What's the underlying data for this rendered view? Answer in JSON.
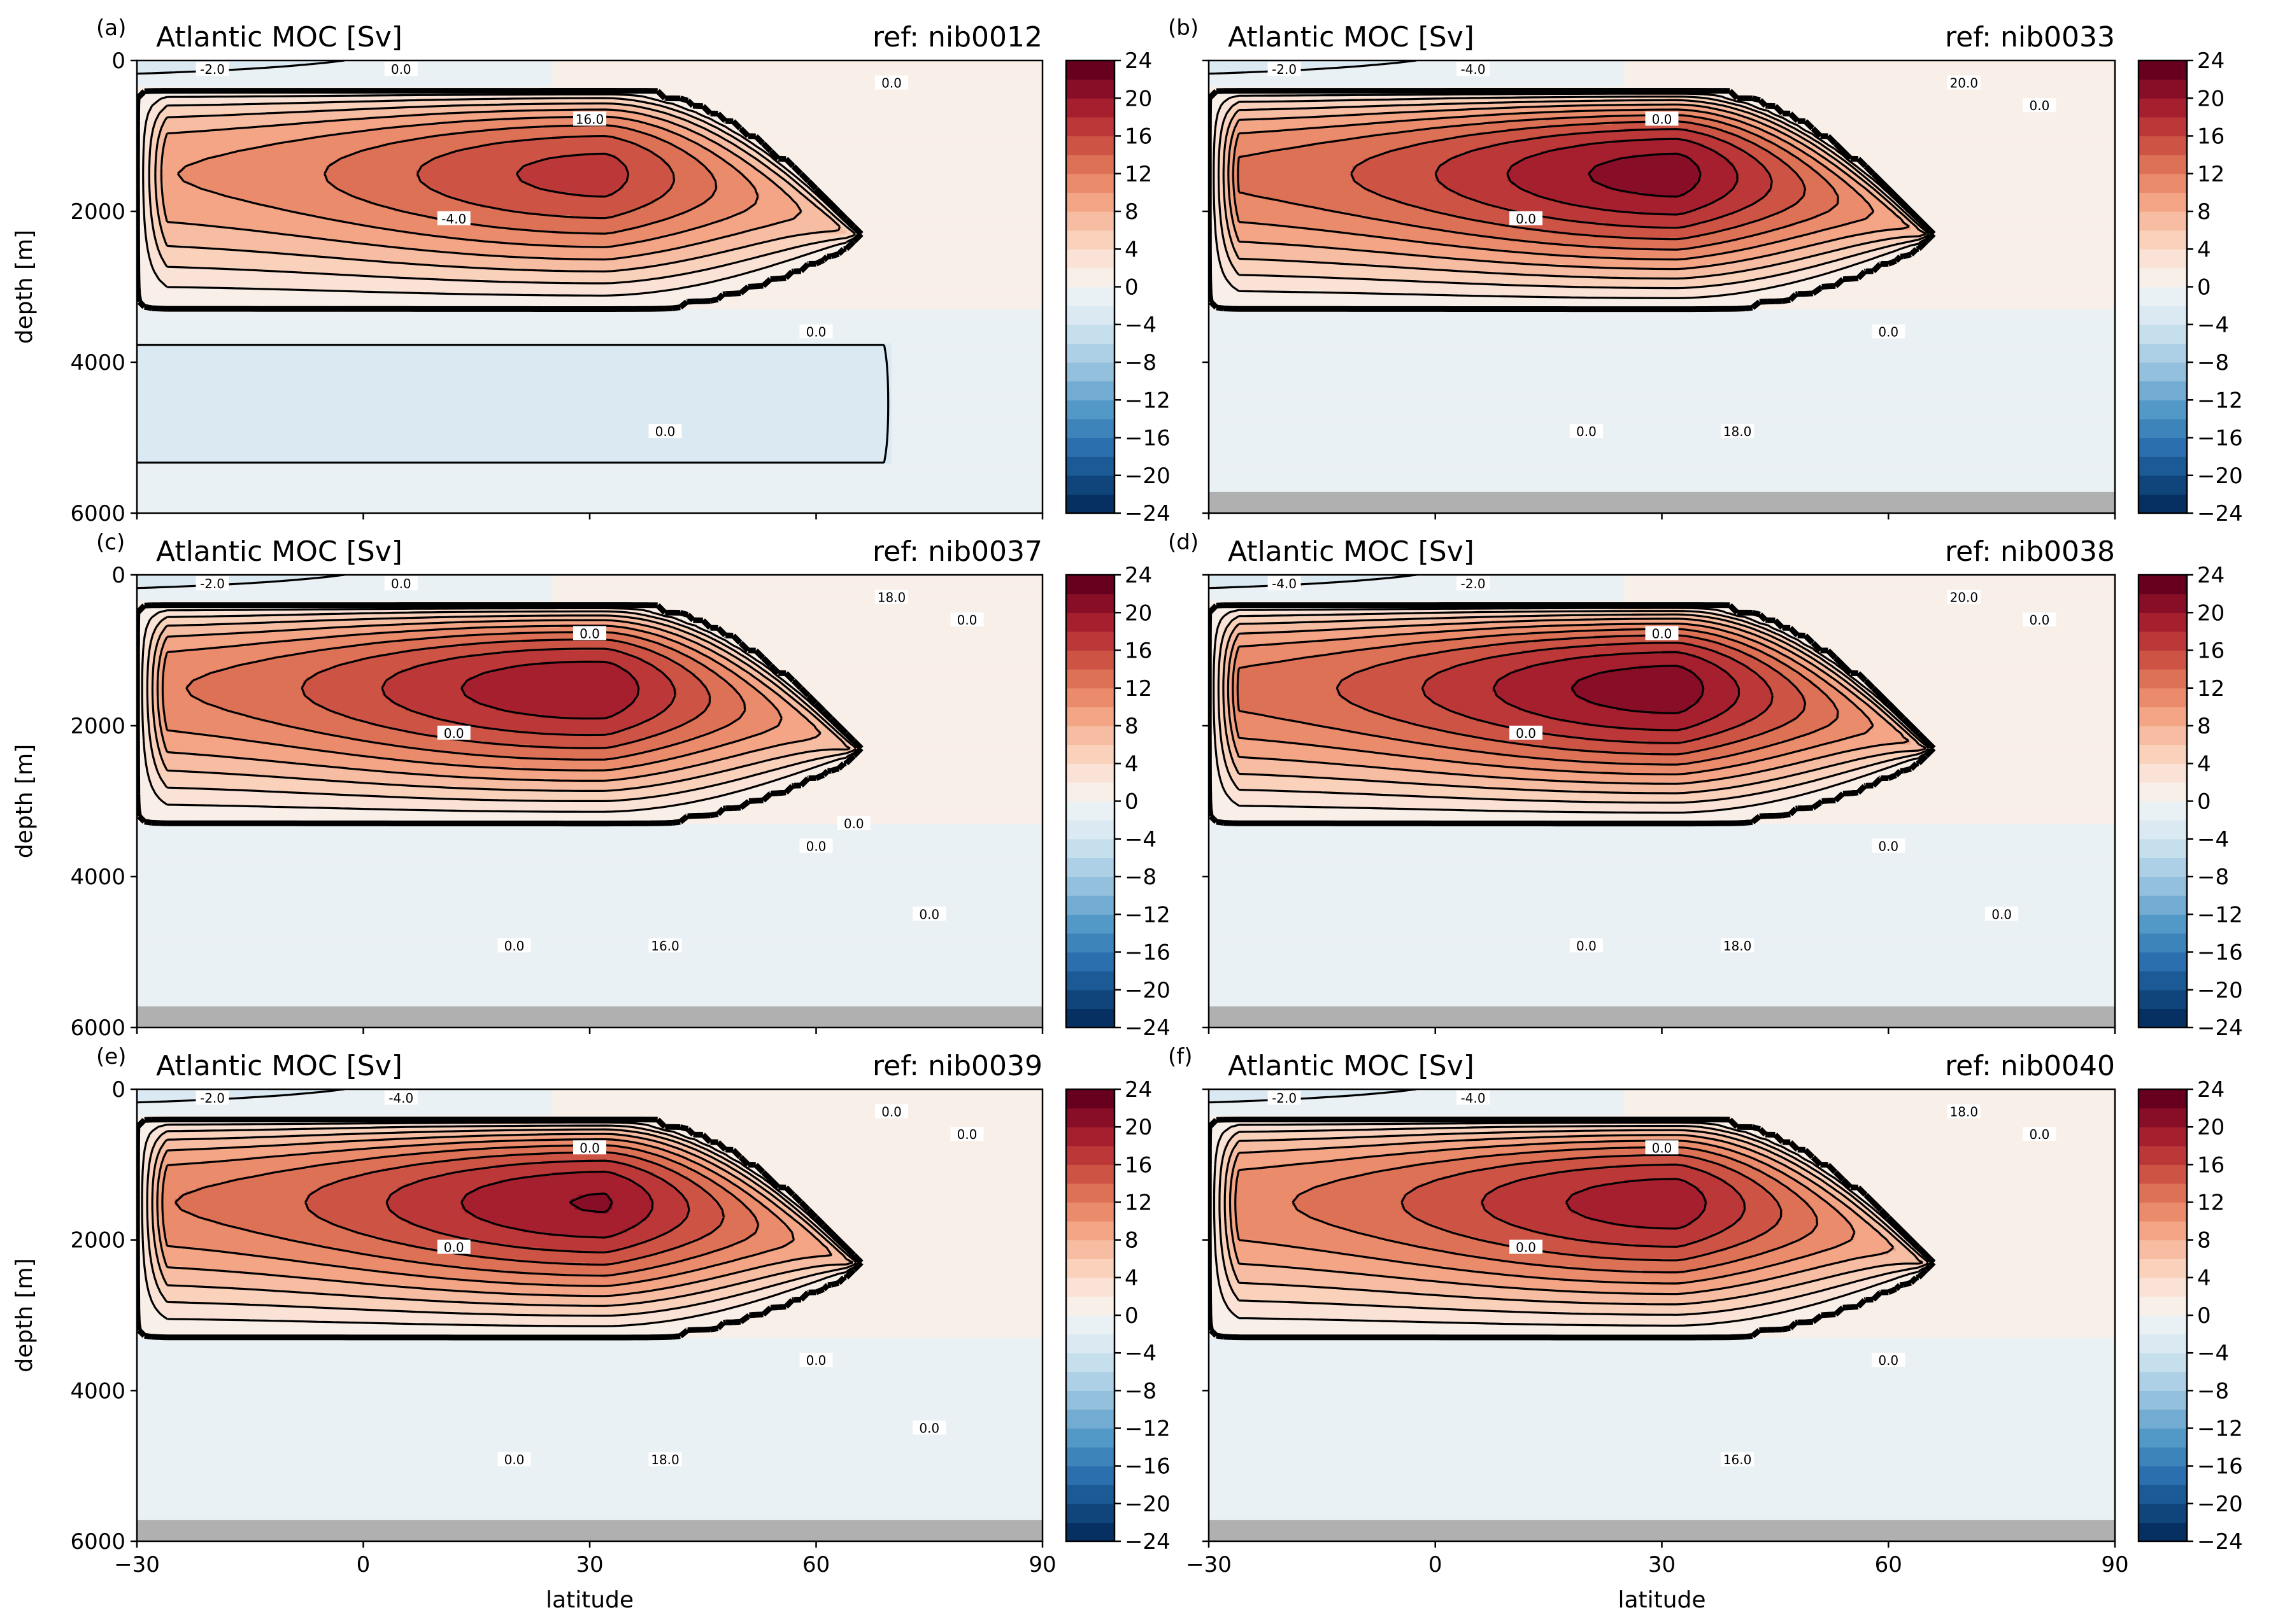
{
  "colors": {
    "levels": [
      -24,
      -22,
      -20,
      -18,
      -16,
      -14,
      -12,
      -10,
      -8,
      -6,
      -4,
      -2,
      0,
      2,
      4,
      6,
      8,
      10,
      12,
      14,
      16,
      18,
      20,
      22,
      24
    ],
    "palette": [
      "#053061",
      "#0f457b",
      "#1b5a95",
      "#2c6fae",
      "#3d84bb",
      "#5399c7",
      "#72acd2",
      "#92c0dd",
      "#aed0e6",
      "#c6dfed",
      "#dae9f2",
      "#eaf1f5",
      "#f9efe9",
      "#fbe2d6",
      "#fad2bc",
      "#f7bda2",
      "#f3a585",
      "#ea8b6c",
      "#dd7156",
      "#cd5445",
      "#bc3838",
      "#a61f2e",
      "#880d26",
      "#67001f"
    ],
    "land": "#b0b0b0"
  },
  "charts": [
    {
      "letter": "(a)",
      "title": "Atlantic MOC [Sv]",
      "ref": "ref: nib0012",
      "ylabel": "depth [m]",
      "xlabel": "",
      "max": 16.8,
      "core_lat": 33,
      "bottom_strength": -3.6,
      "land": false,
      "contour_labels": [
        "-2.0",
        "0.0",
        "16.0",
        "-4.0",
        "0.0",
        "0.0",
        "0.0"
      ]
    },
    {
      "letter": "(b)",
      "title": "Atlantic MOC [Sv]",
      "ref": "ref: nib0033",
      "ylabel": "",
      "xlabel": "",
      "max": 21.0,
      "core_lat": 33,
      "bottom_strength": -0.6,
      "land": true,
      "contour_labels": [
        "-2.0",
        "-4.0",
        "0.0",
        "0.0",
        "18.0",
        "20.0",
        "0.0",
        "0.0",
        "0.0"
      ]
    },
    {
      "letter": "(c)",
      "title": "Atlantic MOC [Sv]",
      "ref": "ref: nib0037",
      "ylabel": "depth [m]",
      "xlabel": "",
      "max": 19.6,
      "core_lat": 30,
      "bottom_strength": -0.6,
      "land": true,
      "contour_labels": [
        "-2.0",
        "0.0",
        "0.0",
        "0.0",
        "16.0",
        "18.0",
        "0.0",
        "0.0",
        "0.0",
        "0.0",
        "0.0"
      ]
    },
    {
      "letter": "(d)",
      "title": "Atlantic MOC [Sv]",
      "ref": "ref: nib0038",
      "ylabel": "",
      "xlabel": "",
      "max": 21.2,
      "core_lat": 32,
      "bottom_strength": -0.6,
      "land": true,
      "contour_labels": [
        "-4.0",
        "-2.0",
        "0.0",
        "0.0",
        "18.0",
        "20.0",
        "0.0",
        "0.0",
        "0.0",
        "0.0"
      ]
    },
    {
      "letter": "(e)",
      "title": "Atlantic MOC [Sv]",
      "ref": "ref: nib0039",
      "ylabel": "depth [m]",
      "xlabel": "latitude",
      "max": 20.2,
      "core_lat": 33,
      "bottom_strength": -0.6,
      "land": true,
      "contour_labels": [
        "-2.0",
        "-4.0",
        "0.0",
        "0.0",
        "18.0",
        "0.0",
        "0.0",
        "0.0",
        "0.0",
        "0.0"
      ]
    },
    {
      "letter": "(f)",
      "title": "Atlantic MOC [Sv]",
      "ref": "ref: nib0040",
      "ylabel": "",
      "xlabel": "latitude",
      "max": 19.2,
      "core_lat": 32,
      "bottom_strength": -0.6,
      "land": true,
      "contour_labels": [
        "-2.0",
        "-4.0",
        "0.0",
        "0.0",
        "16.0",
        "18.0",
        "0.0",
        "0.0"
      ]
    }
  ],
  "chart_data": [
    {
      "type": "heatmap",
      "title": "Atlantic MOC [Sv]",
      "ref": "ref: nib0012",
      "xlabel": "",
      "ylabel": "depth [m]",
      "xlim": [
        -30,
        90
      ],
      "ylim": [
        6000,
        0
      ],
      "xticks": [
        -30,
        0,
        30,
        60,
        90
      ],
      "yticks": [
        0,
        2000,
        4000,
        6000
      ],
      "colorbar_ticks": [
        24,
        20,
        16,
        12,
        8,
        4,
        0,
        -4,
        -8,
        -12,
        -16,
        -20,
        -24
      ],
      "clim": [
        -24,
        24
      ],
      "contour_interval": 2
    },
    {
      "type": "heatmap",
      "title": "Atlantic MOC [Sv]",
      "ref": "ref: nib0033",
      "xlabel": "",
      "ylabel": "",
      "xlim": [
        -30,
        90
      ],
      "ylim": [
        6000,
        0
      ],
      "xticks": [
        -30,
        0,
        30,
        60,
        90
      ],
      "yticks": [
        0,
        2000,
        4000,
        6000
      ],
      "colorbar_ticks": [
        24,
        20,
        16,
        12,
        8,
        4,
        0,
        -4,
        -8,
        -12,
        -16,
        -20,
        -24
      ],
      "clim": [
        -24,
        24
      ],
      "contour_interval": 2
    },
    {
      "type": "heatmap",
      "title": "Atlantic MOC [Sv]",
      "ref": "ref: nib0037",
      "xlabel": "",
      "ylabel": "depth [m]",
      "xlim": [
        -30,
        90
      ],
      "ylim": [
        6000,
        0
      ],
      "xticks": [
        -30,
        0,
        30,
        60,
        90
      ],
      "yticks": [
        0,
        2000,
        4000,
        6000
      ],
      "colorbar_ticks": [
        24,
        20,
        16,
        12,
        8,
        4,
        0,
        -4,
        -8,
        -12,
        -16,
        -20,
        -24
      ],
      "clim": [
        -24,
        24
      ],
      "contour_interval": 2
    },
    {
      "type": "heatmap",
      "title": "Atlantic MOC [Sv]",
      "ref": "ref: nib0038",
      "xlabel": "",
      "ylabel": "",
      "xlim": [
        -30,
        90
      ],
      "ylim": [
        6000,
        0
      ],
      "xticks": [
        -30,
        0,
        30,
        60,
        90
      ],
      "yticks": [
        0,
        2000,
        4000,
        6000
      ],
      "colorbar_ticks": [
        24,
        20,
        16,
        12,
        8,
        4,
        0,
        -4,
        -8,
        -12,
        -16,
        -20,
        -24
      ],
      "clim": [
        -24,
        24
      ],
      "contour_interval": 2
    },
    {
      "type": "heatmap",
      "title": "Atlantic MOC [Sv]",
      "ref": "ref: nib0039",
      "xlabel": "latitude",
      "ylabel": "depth [m]",
      "xlim": [
        -30,
        90
      ],
      "ylim": [
        6000,
        0
      ],
      "xticks": [
        -30,
        0,
        30,
        60,
        90
      ],
      "yticks": [
        0,
        2000,
        4000,
        6000
      ],
      "colorbar_ticks": [
        24,
        20,
        16,
        12,
        8,
        4,
        0,
        -4,
        -8,
        -12,
        -16,
        -20,
        -24
      ],
      "clim": [
        -24,
        24
      ],
      "contour_interval": 2
    },
    {
      "type": "heatmap",
      "title": "Atlantic MOC [Sv]",
      "ref": "ref: nib0040",
      "xlabel": "latitude",
      "ylabel": "",
      "xlim": [
        -30,
        90
      ],
      "ylim": [
        6000,
        0
      ],
      "xticks": [
        -30,
        0,
        30,
        60,
        90
      ],
      "yticks": [
        0,
        2000,
        4000,
        6000
      ],
      "colorbar_ticks": [
        24,
        20,
        16,
        12,
        8,
        4,
        0,
        -4,
        -8,
        -12,
        -16,
        -20,
        -24
      ],
      "clim": [
        -24,
        24
      ],
      "contour_interval": 2
    }
  ]
}
